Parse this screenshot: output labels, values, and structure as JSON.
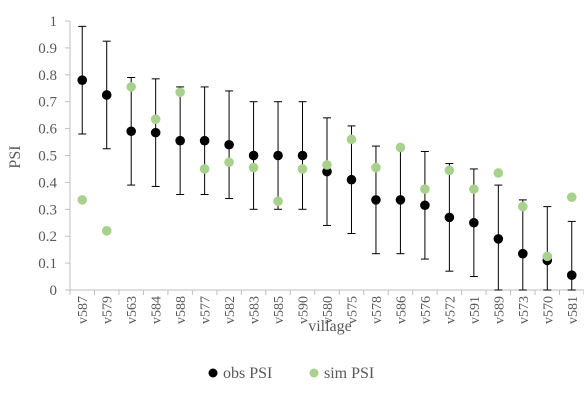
{
  "chart_data": {
    "type": "scatter",
    "title": "",
    "xlabel": "village",
    "ylabel": "PSI",
    "ylim": [
      0,
      1
    ],
    "yticks": [
      "0",
      "0.1",
      "0.2",
      "0.3",
      "0.4",
      "0.5",
      "0.6",
      "0.7",
      "0.8",
      "0.9",
      "1"
    ],
    "categories": [
      "v587",
      "v579",
      "v563",
      "v584",
      "v588",
      "v577",
      "v582",
      "v583",
      "v585",
      "v590",
      "v580",
      "v575",
      "v578",
      "v586",
      "v576",
      "v572",
      "v591",
      "v589",
      "v573",
      "v570",
      "v581"
    ],
    "series": [
      {
        "name": "obs PSI",
        "color": "#000000",
        "values": [
          0.78,
          0.725,
          0.59,
          0.585,
          0.555,
          0.555,
          0.54,
          0.5,
          0.5,
          0.5,
          0.44,
          0.41,
          0.335,
          0.335,
          0.315,
          0.27,
          0.25,
          0.19,
          0.135,
          0.11,
          0.055
        ],
        "error_bars": [
          0.2,
          0.2,
          0.2,
          0.2,
          0.2,
          0.2,
          0.2,
          0.2,
          0.2,
          0.2,
          0.2,
          0.2,
          0.2,
          0.2,
          0.2,
          0.2,
          0.2,
          0.2,
          0.2,
          0.2,
          0.2
        ]
      },
      {
        "name": "sim PSI",
        "color": "#a9d18e",
        "values": [
          0.335,
          0.22,
          0.755,
          0.635,
          0.735,
          0.45,
          0.475,
          0.455,
          0.33,
          0.45,
          0.465,
          0.56,
          0.455,
          0.53,
          0.375,
          0.445,
          0.375,
          0.435,
          0.31,
          0.125,
          0.345
        ]
      }
    ],
    "legend_position": "bottom",
    "grid": false
  }
}
